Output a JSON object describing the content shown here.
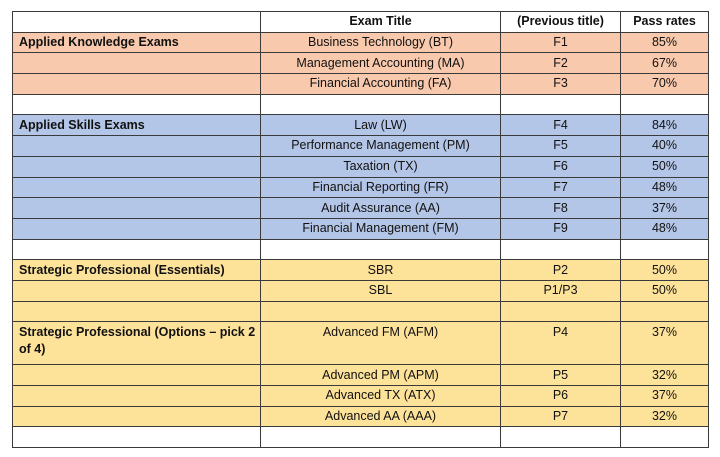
{
  "header": {
    "col1": "",
    "col2": "Exam Title",
    "col3": "(Previous title)",
    "col4": "Pass rates"
  },
  "rows": [
    {
      "group": "knowledge",
      "section": "Applied Knowledge Exams",
      "title": "Business Technology (BT)",
      "previous": "F1",
      "pass_rate": "85%"
    },
    {
      "group": "knowledge",
      "section": "",
      "title": "Management Accounting (MA)",
      "previous": "F2",
      "pass_rate": "67%"
    },
    {
      "group": "knowledge",
      "section": "",
      "title": "Financial Accounting (FA)",
      "previous": "F3",
      "pass_rate": "70%"
    },
    {
      "group": "blank",
      "section": "",
      "title": "",
      "previous": "",
      "pass_rate": ""
    },
    {
      "group": "skills",
      "section": "Applied Skills Exams",
      "title": "Law (LW)",
      "previous": "F4",
      "pass_rate": "84%"
    },
    {
      "group": "skills",
      "section": "",
      "title": "Performance Management (PM)",
      "previous": "F5",
      "pass_rate": "40%"
    },
    {
      "group": "skills",
      "section": "",
      "title": "Taxation (TX)",
      "previous": "F6",
      "pass_rate": "50%"
    },
    {
      "group": "skills",
      "section": "",
      "title": "Financial Reporting (FR)",
      "previous": "F7",
      "pass_rate": "48%"
    },
    {
      "group": "skills",
      "section": "",
      "title": "Audit Assurance (AA)",
      "previous": "F8",
      "pass_rate": "37%"
    },
    {
      "group": "skills",
      "section": "",
      "title": "Financial Management (FM)",
      "previous": "F9",
      "pass_rate": "48%"
    },
    {
      "group": "blank",
      "section": "",
      "title": "",
      "previous": "",
      "pass_rate": ""
    },
    {
      "group": "strategic",
      "section": "Strategic Professional (Essentials)",
      "title": "SBR",
      "previous": "P2",
      "pass_rate": "50%"
    },
    {
      "group": "strategic",
      "section": "",
      "title": "SBL",
      "previous": "P1/P3",
      "pass_rate": "50%"
    },
    {
      "group": "strategic",
      "section": "",
      "title": "",
      "previous": "",
      "pass_rate": ""
    },
    {
      "group": "strategic",
      "section": "Strategic Professional (Options – pick 2 of 4)",
      "title": "Advanced FM (AFM)",
      "previous": "P4",
      "pass_rate": "37%",
      "tall": true
    },
    {
      "group": "strategic",
      "section": "",
      "title": "Advanced PM (APM)",
      "previous": "P5",
      "pass_rate": "32%"
    },
    {
      "group": "strategic",
      "section": "",
      "title": "Advanced TX (ATX)",
      "previous": "P6",
      "pass_rate": "37%"
    },
    {
      "group": "strategic",
      "section": "",
      "title": "Advanced AA (AAA)",
      "previous": "P7",
      "pass_rate": "32%"
    },
    {
      "group": "blank",
      "section": "",
      "title": "",
      "previous": "",
      "pass_rate": ""
    }
  ]
}
